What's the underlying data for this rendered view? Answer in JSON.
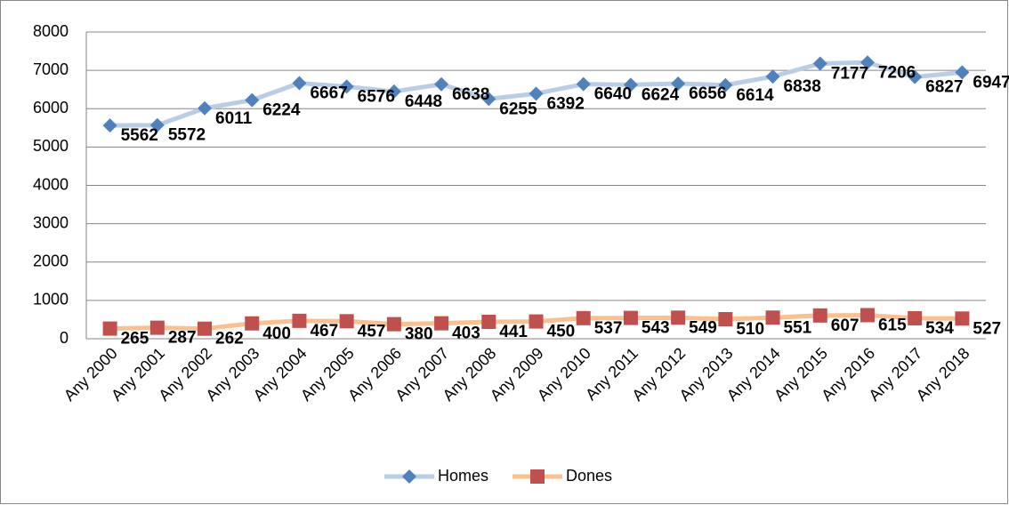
{
  "chart_data": {
    "type": "line",
    "categories": [
      "Any 2000",
      "Any 2001",
      "Any 2002",
      "Any 2003",
      "Any 2004",
      "Any 2005",
      "Any 2006",
      "Any 2007",
      "Any 2008",
      "Any 2009",
      "Any 2010",
      "Any 2011",
      "Any 2012",
      "Any 2013",
      "Any 2014",
      "Any 2015",
      "Any 2016",
      "Any 2017",
      "Any 2018"
    ],
    "series": [
      {
        "name": "Homes",
        "color": "#4f81bd",
        "line_color": "#b9cde5",
        "marker": "diamond",
        "values": [
          5562,
          5572,
          6011,
          6224,
          6667,
          6576,
          6448,
          6638,
          6255,
          6392,
          6640,
          6624,
          6656,
          6614,
          6838,
          7177,
          7206,
          6827,
          6947
        ]
      },
      {
        "name": "Dones",
        "color": "#c0504d",
        "line_color": "#fac090",
        "marker": "square",
        "values": [
          265,
          287,
          262,
          400,
          467,
          457,
          380,
          403,
          441,
          450,
          537,
          543,
          549,
          510,
          551,
          607,
          615,
          534,
          527
        ]
      }
    ],
    "ylim": [
      0,
      8000
    ],
    "yticks": [
      0,
      1000,
      2000,
      3000,
      4000,
      5000,
      6000,
      7000,
      8000
    ],
    "grid": true,
    "legend": "bottom"
  }
}
